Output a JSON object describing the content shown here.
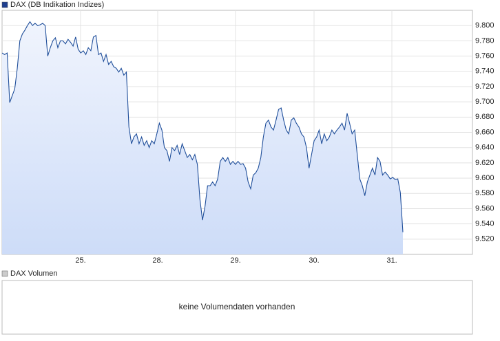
{
  "chart_data": {
    "type": "area",
    "legend": "DAX (DB Indikation Indizes)",
    "color": "#1f4e9a",
    "xtick_labels": [
      "25.",
      "28.",
      "29.",
      "30.",
      "31."
    ],
    "ylim": [
      9500,
      9820
    ],
    "yticks": [
      {
        "value": 9520,
        "label": "9.520"
      },
      {
        "value": 9540,
        "label": "9.540"
      },
      {
        "value": 9560,
        "label": "9.560"
      },
      {
        "value": 9580,
        "label": "9.580"
      },
      {
        "value": 9600,
        "label": "9.600"
      },
      {
        "value": 9620,
        "label": "9.620"
      },
      {
        "value": 9640,
        "label": "9.640"
      },
      {
        "value": 9660,
        "label": "9.660"
      },
      {
        "value": 9680,
        "label": "9.680"
      },
      {
        "value": 9700,
        "label": "9.700"
      },
      {
        "value": 9720,
        "label": "9.720"
      },
      {
        "value": 9740,
        "label": "9.740"
      },
      {
        "value": 9760,
        "label": "9.760"
      },
      {
        "value": 9780,
        "label": "9.780"
      },
      {
        "value": 9800,
        "label": "9.800"
      }
    ],
    "grid": true,
    "values": [
      9764,
      9762,
      9764,
      9699,
      9708,
      9717,
      9744,
      9780,
      9789,
      9794,
      9800,
      9805,
      9800,
      9803,
      9800,
      9801,
      9803,
      9800,
      9760,
      9771,
      9780,
      9784,
      9771,
      9780,
      9780,
      9776,
      9782,
      9778,
      9773,
      9785,
      9769,
      9764,
      9767,
      9762,
      9771,
      9767,
      9785,
      9787,
      9762,
      9764,
      9753,
      9762,
      9749,
      9753,
      9746,
      9744,
      9739,
      9744,
      9735,
      9739,
      9667,
      9645,
      9654,
      9658,
      9645,
      9654,
      9643,
      9649,
      9640,
      9649,
      9645,
      9658,
      9672,
      9663,
      9640,
      9636,
      9622,
      9640,
      9636,
      9643,
      9631,
      9645,
      9636,
      9627,
      9631,
      9624,
      9631,
      9618,
      9572,
      9545,
      9563,
      9590,
      9590,
      9595,
      9590,
      9599,
      9622,
      9627,
      9622,
      9627,
      9618,
      9622,
      9618,
      9622,
      9618,
      9619,
      9613,
      9595,
      9586,
      9604,
      9607,
      9613,
      9627,
      9654,
      9672,
      9676,
      9667,
      9663,
      9676,
      9690,
      9692,
      9676,
      9663,
      9658,
      9676,
      9679,
      9672,
      9667,
      9658,
      9654,
      9640,
      9613,
      9631,
      9649,
      9654,
      9663,
      9645,
      9658,
      9649,
      9654,
      9663,
      9658,
      9663,
      9667,
      9672,
      9663,
      9685,
      9672,
      9658,
      9663,
      9631,
      9599,
      9590,
      9577,
      9595,
      9604,
      9613,
      9604,
      9627,
      9622,
      9604,
      9608,
      9604,
      9599,
      9601,
      9598,
      9599,
      9581,
      9529
    ]
  },
  "volume_panel": {
    "legend": "DAX Volumen",
    "message": "keine Volumendaten vorhanden"
  }
}
